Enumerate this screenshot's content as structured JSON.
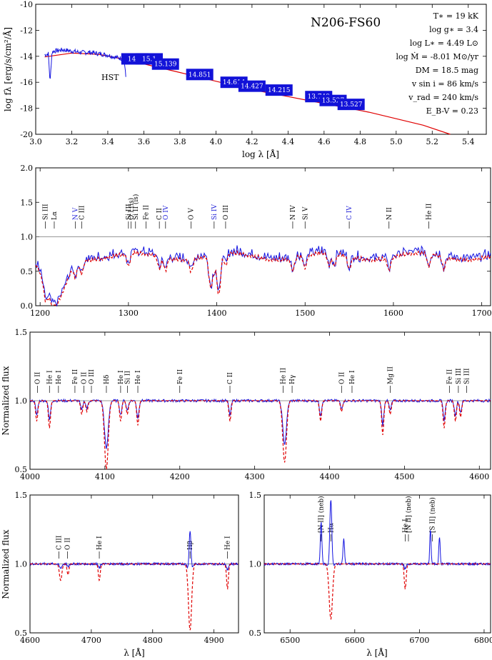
{
  "figure": {
    "star_name": "N206-FS60",
    "params": [
      "T∗ = 19 kK",
      "log g∗ = 3.4",
      "log L∗ = 4.49 L⊙",
      "log Ṁ = -8.01 M⊙/yr",
      "DM = 18.5 mag",
      "v sin i = 86 km/s",
      "v_rad = 240 km/s",
      "E_B-V = 0.23"
    ],
    "hst_label": "HST"
  },
  "colors": {
    "observation": "#1414e0",
    "model": "#e00000",
    "reference": "#777777",
    "photometry_box": "#1212d8"
  },
  "chart_data": [
    {
      "id": "sed",
      "type": "line",
      "xlabel": "log λ [Å]",
      "ylabel": "log fλ [erg/s/cm²/Å]",
      "xlim": [
        3.0,
        5.5
      ],
      "ylim": [
        -20,
        -10
      ],
      "xticks": [
        "3.0",
        "3.2",
        "3.4",
        "3.6",
        "3.8",
        "4.0",
        "4.2",
        "4.4",
        "4.6",
        "4.8",
        "5.0",
        "5.2",
        "5.4"
      ],
      "yticks": [
        "-10",
        "-12",
        "-14",
        "-16",
        "-18",
        "-20"
      ],
      "model": {
        "x": [
          3.05,
          3.2,
          3.35,
          3.5,
          3.65,
          3.8,
          3.95,
          4.1,
          4.25,
          4.4,
          4.55,
          4.7,
          4.85,
          5.0,
          5.15,
          5.3
        ],
        "y": [
          -14.05,
          -13.75,
          -13.85,
          -14.25,
          -14.75,
          -15.25,
          -15.75,
          -16.25,
          -16.7,
          -17.1,
          -17.5,
          -17.9,
          -18.3,
          -18.8,
          -19.3,
          -20.0
        ]
      },
      "observation": {
        "x": [
          3.05,
          3.07,
          3.08,
          3.09,
          3.1,
          3.15,
          3.2,
          3.25,
          3.3,
          3.35,
          3.4,
          3.45,
          3.49,
          3.5
        ],
        "y": [
          -13.9,
          -13.8,
          -16.0,
          -13.7,
          -13.6,
          -13.5,
          -13.6,
          -13.7,
          -13.7,
          -13.8,
          -13.9,
          -14.1,
          -14.2,
          -15.6
        ]
      },
      "photometry": [
        {
          "label": "14.1",
          "x": 3.55,
          "y": -14.2
        },
        {
          "label": "15.1",
          "x": 3.63,
          "y": -14.2
        },
        {
          "label": "15.139",
          "x": 3.72,
          "y": -14.6
        },
        {
          "label": "14.851",
          "x": 3.91,
          "y": -15.4
        },
        {
          "label": "14.614",
          "x": 4.1,
          "y": -16.0
        },
        {
          "label": "14.427",
          "x": 4.2,
          "y": -16.3
        },
        {
          "label": "14.215",
          "x": 4.35,
          "y": -16.6
        },
        {
          "label": "13.749",
          "x": 4.57,
          "y": -17.1
        },
        {
          "label": "13.527",
          "x": 4.65,
          "y": -17.4
        },
        {
          "label": "13.527",
          "x": 4.75,
          "y": -17.7
        }
      ]
    },
    {
      "id": "uv",
      "type": "line",
      "xlabel": "",
      "ylabel": "",
      "xlim": [
        1195,
        1710
      ],
      "ylim": [
        0,
        2
      ],
      "xticks": [
        "1200",
        "1300",
        "1400",
        "1500",
        "1600",
        "1700"
      ],
      "yticks": [
        "0.0",
        "0.5",
        "1.0",
        "1.5",
        "2.0"
      ],
      "lines": [
        {
          "label": "Si III",
          "x": 1206,
          "blue": false
        },
        {
          "label": "Lα",
          "x": 1216,
          "blue": false
        },
        {
          "label": "N V",
          "x": 1240,
          "blue": true
        },
        {
          "label": "C III",
          "x": 1247,
          "blue": false
        },
        {
          "label": "Si III",
          "x": 1300,
          "blue": false
        },
        {
          "label": "O I (is)",
          "x": 1303,
          "blue": false
        },
        {
          "label": "Si II (is)",
          "x": 1308,
          "blue": false
        },
        {
          "label": "Fe II",
          "x": 1320,
          "blue": false
        },
        {
          "label": "C II",
          "x": 1335,
          "blue": false
        },
        {
          "label": "O IV",
          "x": 1342,
          "blue": true
        },
        {
          "label": "O V",
          "x": 1371,
          "blue": false
        },
        {
          "label": "Si IV",
          "x": 1397,
          "blue": true
        },
        {
          "label": "O III",
          "x": 1410,
          "blue": false
        },
        {
          "label": "N IV",
          "x": 1486,
          "blue": false
        },
        {
          "label": "Si V",
          "x": 1500,
          "blue": false
        },
        {
          "label": "C IV",
          "x": 1550,
          "blue": true
        },
        {
          "label": "N II",
          "x": 1595,
          "blue": false
        },
        {
          "label": "He II",
          "x": 1640,
          "blue": false
        }
      ]
    },
    {
      "id": "opt1",
      "type": "line",
      "xlabel": "",
      "ylabel": "Normalized flux",
      "xlim": [
        4000,
        4615
      ],
      "ylim": [
        0.5,
        1.5
      ],
      "xticks": [
        "4000",
        "4100",
        "4200",
        "4300",
        "4400",
        "4500",
        "4600"
      ],
      "yticks": [
        "0.5",
        "1.0",
        "1.5"
      ],
      "lines": [
        {
          "label": "O II",
          "x": 4010,
          "blue": false
        },
        {
          "label": "He I",
          "x": 4026,
          "blue": false
        },
        {
          "label": "He I",
          "x": 4038,
          "blue": false
        },
        {
          "label": "Fe II",
          "x": 4060,
          "blue": false
        },
        {
          "label": "O II",
          "x": 4072,
          "blue": false
        },
        {
          "label": "O III",
          "x": 4082,
          "blue": false
        },
        {
          "label": "Hδ",
          "x": 4102,
          "blue": false
        },
        {
          "label": "He I",
          "x": 4121,
          "blue": false
        },
        {
          "label": "Si II",
          "x": 4130,
          "blue": false
        },
        {
          "label": "He I",
          "x": 4144,
          "blue": false
        },
        {
          "label": "Fe II",
          "x": 4200,
          "blue": false
        },
        {
          "label": "C II",
          "x": 4267,
          "blue": false
        },
        {
          "label": "He II",
          "x": 4338,
          "blue": false
        },
        {
          "label": "Hγ",
          "x": 4350,
          "blue": false
        },
        {
          "label": "O II",
          "x": 4416,
          "blue": false
        },
        {
          "label": "He I",
          "x": 4430,
          "blue": false
        },
        {
          "label": "Mg II",
          "x": 4481,
          "blue": false
        },
        {
          "label": "Fe II",
          "x": 4560,
          "blue": false
        },
        {
          "label": "Si III",
          "x": 4572,
          "blue": false
        },
        {
          "label": "Si III",
          "x": 4583,
          "blue": false
        }
      ]
    },
    {
      "id": "opt2",
      "type": "line",
      "xlabel": "λ [Å]",
      "ylabel": "Normalized flux",
      "xlim": [
        4600,
        4940
      ],
      "ylim": [
        0.5,
        1.5
      ],
      "xticks": [
        "4600",
        "4700",
        "4800",
        "4900"
      ],
      "yticks": [
        "0.5",
        "1.0",
        "1.5"
      ],
      "lines": [
        {
          "label": "C III",
          "x": 4647,
          "blue": false
        },
        {
          "label": "O II",
          "x": 4661,
          "blue": false
        },
        {
          "label": "He I",
          "x": 4713,
          "blue": false
        },
        {
          "label": "Hβ",
          "x": 4861,
          "blue": false
        },
        {
          "label": "He I",
          "x": 4922,
          "blue": false
        }
      ]
    },
    {
      "id": "opt3",
      "type": "line",
      "xlabel": "λ [Å]",
      "ylabel": "",
      "xlim": [
        6460,
        6810
      ],
      "ylim": [
        0.5,
        1.5
      ],
      "xticks": [
        "6500",
        "6600",
        "6700",
        "6800"
      ],
      "yticks": [
        "0.5",
        "1.0",
        "1.5"
      ],
      "lines": [
        {
          "label": "[N II] (neb)",
          "x": 6548,
          "blue": false
        },
        {
          "label": "Hα",
          "x": 6563,
          "blue": false
        },
        {
          "label": "He I",
          "x": 6678,
          "blue": false
        },
        {
          "label": "[N II] (neb)",
          "x": 6683,
          "blue": false
        },
        {
          "label": "[S II] (neb)",
          "x": 6720,
          "blue": false
        }
      ]
    }
  ]
}
